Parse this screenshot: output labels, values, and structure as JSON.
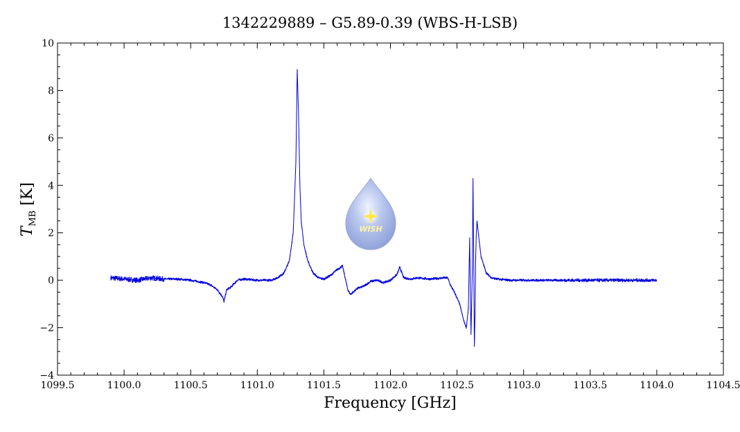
{
  "chart_data": {
    "type": "line",
    "title": "1342229889 – G5.89-0.39 (WBS-H-LSB)",
    "xlabel": "Frequency [GHz]",
    "ylabel": {
      "main": "T",
      "sub": "MB",
      "unit": " [K]"
    },
    "xlim": [
      1099.5,
      1104.5
    ],
    "ylim": [
      -4,
      10
    ],
    "xticks": [
      1099.5,
      1100.0,
      1100.5,
      1101.0,
      1101.5,
      1102.0,
      1102.5,
      1103.0,
      1103.5,
      1104.0,
      1104.5
    ],
    "xtick_labels": [
      "1099.5",
      "1100.0",
      "1100.5",
      "1101.0",
      "1101.5",
      "1102.0",
      "1102.5",
      "1103.0",
      "1103.5",
      "1104.0",
      "1104.5"
    ],
    "yticks": [
      -4,
      -2,
      0,
      2,
      4,
      6,
      8,
      10
    ],
    "ytick_labels": [
      "−4",
      "−2",
      "0",
      "2",
      "4",
      "6",
      "8",
      "10"
    ],
    "grid": false,
    "logo_text": "WISH",
    "series": [
      {
        "color": "#0000dd",
        "x": [
          1099.9,
          1100.0,
          1100.1,
          1100.2,
          1100.3,
          1100.4,
          1100.5,
          1100.55,
          1100.6,
          1100.65,
          1100.7,
          1100.74,
          1100.75,
          1100.77,
          1100.8,
          1100.85,
          1100.9,
          1101.0,
          1101.1,
          1101.15,
          1101.2,
          1101.24,
          1101.27,
          1101.29,
          1101.3,
          1101.31,
          1101.32,
          1101.33,
          1101.35,
          1101.38,
          1101.42,
          1101.46,
          1101.5,
          1101.55,
          1101.6,
          1101.64,
          1101.66,
          1101.68,
          1101.7,
          1101.75,
          1101.8,
          1101.85,
          1101.9,
          1101.95,
          1102.0,
          1102.05,
          1102.07,
          1102.08,
          1102.1,
          1102.15,
          1102.2,
          1102.3,
          1102.4,
          1102.43,
          1102.45,
          1102.48,
          1102.52,
          1102.55,
          1102.57,
          1102.585,
          1102.595,
          1102.6,
          1102.605,
          1102.615,
          1102.62,
          1102.625,
          1102.63,
          1102.635,
          1102.64,
          1102.645,
          1102.65,
          1102.66,
          1102.68,
          1102.72,
          1102.76,
          1102.8,
          1102.9,
          1103.0,
          1103.2,
          1103.4,
          1103.6,
          1103.8,
          1104.0
        ],
        "y": [
          0.1,
          0.05,
          0.0,
          0.1,
          0.05,
          0.05,
          0.0,
          -0.05,
          -0.1,
          -0.2,
          -0.4,
          -0.7,
          -0.9,
          -0.4,
          -0.3,
          0.0,
          0.05,
          0.0,
          0.0,
          0.1,
          0.3,
          0.8,
          2.0,
          5.0,
          8.9,
          7.0,
          4.0,
          2.5,
          1.5,
          0.8,
          0.3,
          0.1,
          0.05,
          0.2,
          0.45,
          0.6,
          0.1,
          -0.4,
          -0.6,
          -0.35,
          -0.25,
          -0.05,
          0.0,
          -0.1,
          0.0,
          0.25,
          0.55,
          0.4,
          0.1,
          0.05,
          0.1,
          0.05,
          0.1,
          0.1,
          -0.2,
          -0.5,
          -1.0,
          -1.7,
          -2.0,
          -1.2,
          1.8,
          -0.5,
          -2.3,
          0.5,
          4.3,
          1.0,
          -2.8,
          -1.5,
          1.0,
          2.0,
          2.5,
          2.0,
          1.0,
          0.3,
          0.1,
          0.05,
          0.0,
          0.0,
          0.0,
          0.0,
          0.0,
          0.0,
          0.0
        ]
      }
    ]
  }
}
